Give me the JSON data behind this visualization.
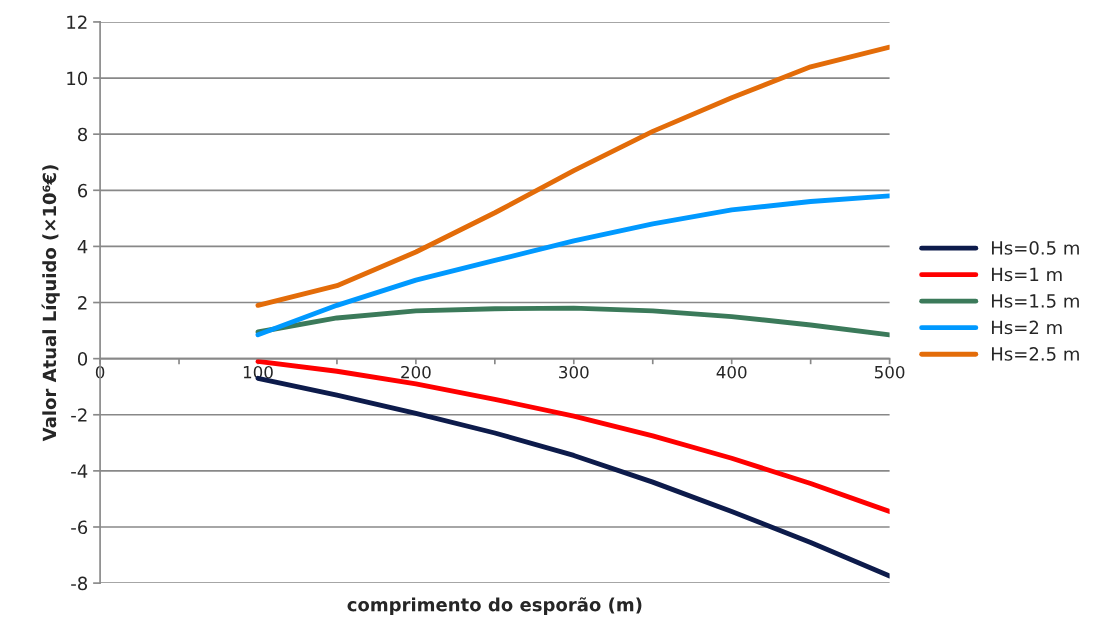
{
  "chart_data": {
    "type": "line",
    "xlabel": "comprimento do esporão (m)",
    "ylabel": "Valor Atual Líquido (×10⁶€)",
    "x": [
      100,
      150,
      200,
      250,
      300,
      350,
      400,
      450,
      500
    ],
    "series": [
      {
        "name": "Hs=0.5 m",
        "color": "#0d1b4b",
        "values": [
          -0.7,
          -1.3,
          -1.95,
          -2.65,
          -3.45,
          -4.4,
          -5.45,
          -6.55,
          -7.75
        ]
      },
      {
        "name": "Hs=1 m",
        "color": "#ff0000",
        "values": [
          -0.1,
          -0.45,
          -0.9,
          -1.45,
          -2.05,
          -2.75,
          -3.55,
          -4.45,
          -5.45
        ]
      },
      {
        "name": "Hs=1.5 m",
        "color": "#3b7a5a",
        "values": [
          0.95,
          1.45,
          1.7,
          1.78,
          1.8,
          1.7,
          1.5,
          1.2,
          0.85
        ]
      },
      {
        "name": "Hs=2 m",
        "color": "#0099ff",
        "values": [
          0.85,
          1.9,
          2.8,
          3.5,
          4.2,
          4.8,
          5.3,
          5.6,
          5.8
        ]
      },
      {
        "name": "Hs=2.5 m",
        "color": "#e36c09",
        "values": [
          1.9,
          2.6,
          3.8,
          5.2,
          6.7,
          8.1,
          9.3,
          10.4,
          11.1
        ]
      }
    ],
    "xlim": [
      0,
      500
    ],
    "xticks": [
      0,
      {
        "value": 50,
        "label": null
      },
      100,
      {
        "value": 150,
        "label": null
      },
      200,
      {
        "value": 250,
        "label": null
      },
      300,
      {
        "value": 350,
        "label": null
      },
      400,
      {
        "value": 450,
        "label": null
      },
      500
    ],
    "ylim": [
      -8,
      12
    ],
    "yticks": [
      -8,
      -6,
      -4,
      -2,
      0,
      2,
      4,
      6,
      8,
      10,
      12
    ],
    "grid": "y",
    "legend": "right",
    "marker": "none",
    "line_style": "solid"
  }
}
